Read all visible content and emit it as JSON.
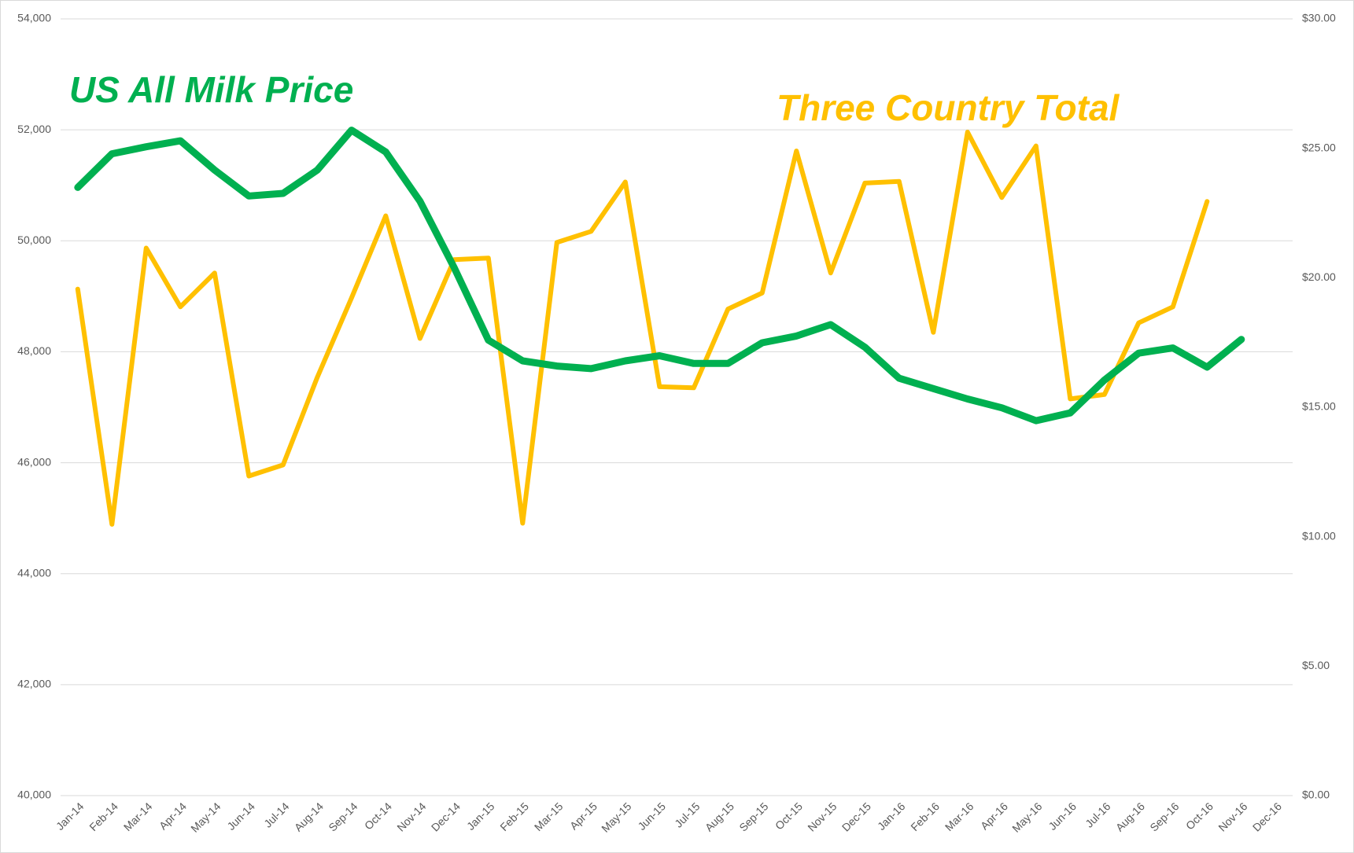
{
  "chart_data": {
    "type": "line",
    "categories": [
      "Jan-14",
      "Feb-14",
      "Mar-14",
      "Apr-14",
      "May-14",
      "Jun-14",
      "Jul-14",
      "Aug-14",
      "Sep-14",
      "Oct-14",
      "Nov-14",
      "Dec-14",
      "Jan-15",
      "Feb-15",
      "Mar-15",
      "Apr-15",
      "May-15",
      "Jun-15",
      "Jul-15",
      "Aug-15",
      "Sep-15",
      "Oct-15",
      "Nov-15",
      "Dec-15",
      "Jan-16",
      "Feb-16",
      "Mar-16",
      "Apr-16",
      "May-16",
      "Jun-16",
      "Jul-16",
      "Aug-16",
      "Sep-16",
      "Oct-16",
      "Nov-16",
      "Dec-16"
    ],
    "series": [
      {
        "name": "Three Country Total",
        "color": "#ffc000",
        "axis": "y",
        "values": [
          49130,
          44890,
          49870,
          48810,
          49420,
          45760,
          45960,
          47540,
          48970,
          50450,
          48240,
          49660,
          49690,
          44910,
          49970,
          50170,
          51060,
          47370,
          47350,
          48770,
          49060,
          51620,
          49420,
          51040,
          51070,
          48350,
          51960,
          50780,
          51710,
          47150,
          47230,
          48520,
          48810,
          50710,
          null,
          null
        ]
      },
      {
        "name": "US All Milk Price",
        "color": "#00b050",
        "axis": "y2",
        "values": [
          23.49,
          24.79,
          25.06,
          25.29,
          24.16,
          23.16,
          23.26,
          24.16,
          25.7,
          24.86,
          22.96,
          20.39,
          17.59,
          16.79,
          16.59,
          16.49,
          16.79,
          16.99,
          16.69,
          16.69,
          17.49,
          17.75,
          18.19,
          17.32,
          16.12,
          15.72,
          15.32,
          14.98,
          14.48,
          14.78,
          16.05,
          17.09,
          17.29,
          16.55,
          17.62,
          null
        ]
      }
    ],
    "ylim": [
      40000,
      54000
    ],
    "yticks": [
      {
        "value": 40000,
        "label": "40,000"
      },
      {
        "value": 42000,
        "label": "42,000"
      },
      {
        "value": 44000,
        "label": "44,000"
      },
      {
        "value": 46000,
        "label": "46,000"
      },
      {
        "value": 48000,
        "label": "48,000"
      },
      {
        "value": 50000,
        "label": "50,000"
      },
      {
        "value": 52000,
        "label": "52,000"
      },
      {
        "value": 54000,
        "label": "54,000"
      }
    ],
    "y2lim": [
      0,
      30
    ],
    "y2ticks": [
      {
        "value": 0,
        "label": "$0.00"
      },
      {
        "value": 5,
        "label": "$5.00"
      },
      {
        "value": 10,
        "label": "$10.00"
      },
      {
        "value": 15,
        "label": "$15.00"
      },
      {
        "value": 20,
        "label": "$20.00"
      },
      {
        "value": 25,
        "label": "$25.00"
      },
      {
        "value": 30,
        "label": "$30.00"
      }
    ],
    "grid": true
  }
}
